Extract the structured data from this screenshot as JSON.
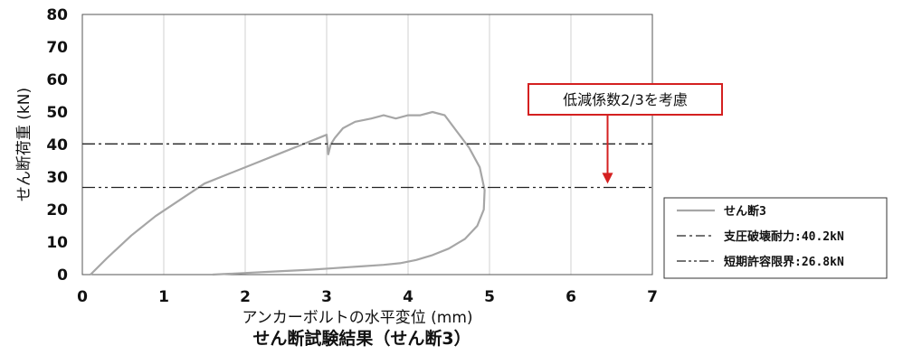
{
  "chart_data": {
    "type": "line",
    "xlabel": "アンカーボルトの水平変位 (mm)",
    "ylabel": "せん断荷重 (kN)",
    "caption": "せん断試験結果（せん断3）",
    "xlim": [
      0,
      7
    ],
    "ylim": [
      0,
      80
    ],
    "x_ticks": [
      0,
      1,
      2,
      3,
      4,
      5,
      6,
      7
    ],
    "y_ticks": [
      0,
      10,
      20,
      30,
      40,
      50,
      60,
      70,
      80
    ],
    "grid": "vertical",
    "legend_position": "bottom-right",
    "series": [
      {
        "name": "せん断3",
        "style": "solid",
        "color": "#a6a6a6",
        "x": [
          0.1,
          0.3,
          0.6,
          0.9,
          1.2,
          1.5,
          1.8,
          2.1,
          2.4,
          2.7,
          2.9,
          3.0,
          3.02,
          3.05,
          3.1,
          3.2,
          3.35,
          3.55,
          3.7,
          3.85,
          4.0,
          4.15,
          4.3,
          4.45,
          4.6,
          4.75,
          4.88,
          4.94,
          4.93,
          4.85,
          4.7,
          4.5,
          4.3,
          4.1,
          3.9,
          3.7,
          3.4,
          3.1,
          2.8,
          2.4,
          2.0,
          1.6
        ],
        "y": [
          0,
          5,
          12,
          18,
          23,
          28,
          31,
          34,
          37,
          40,
          42,
          43,
          37,
          40,
          42,
          45,
          47,
          48,
          49,
          48,
          49,
          49,
          50,
          49,
          44,
          39,
          33,
          26,
          20,
          15,
          11,
          8,
          6,
          4.5,
          3.5,
          3,
          2.5,
          2,
          1.5,
          1,
          0.5,
          0
        ]
      },
      {
        "name": "支圧破壊耐力:40.2kN",
        "style": "dash-dot",
        "color": "#222222",
        "x": [
          0,
          7
        ],
        "y": [
          40.2,
          40.2
        ]
      },
      {
        "name": "短期許容限界:26.8kN",
        "style": "dash-dot-dot",
        "color": "#222222",
        "x": [
          0,
          7
        ],
        "y": [
          26.8,
          26.8
        ]
      }
    ],
    "annotation": {
      "text": "低減係数2/3を考慮",
      "box_color": "#d42020",
      "arrow_color": "#d42020",
      "arrow_from": [
        6.45,
        40.2
      ],
      "arrow_to": [
        6.45,
        28.5
      ]
    }
  }
}
